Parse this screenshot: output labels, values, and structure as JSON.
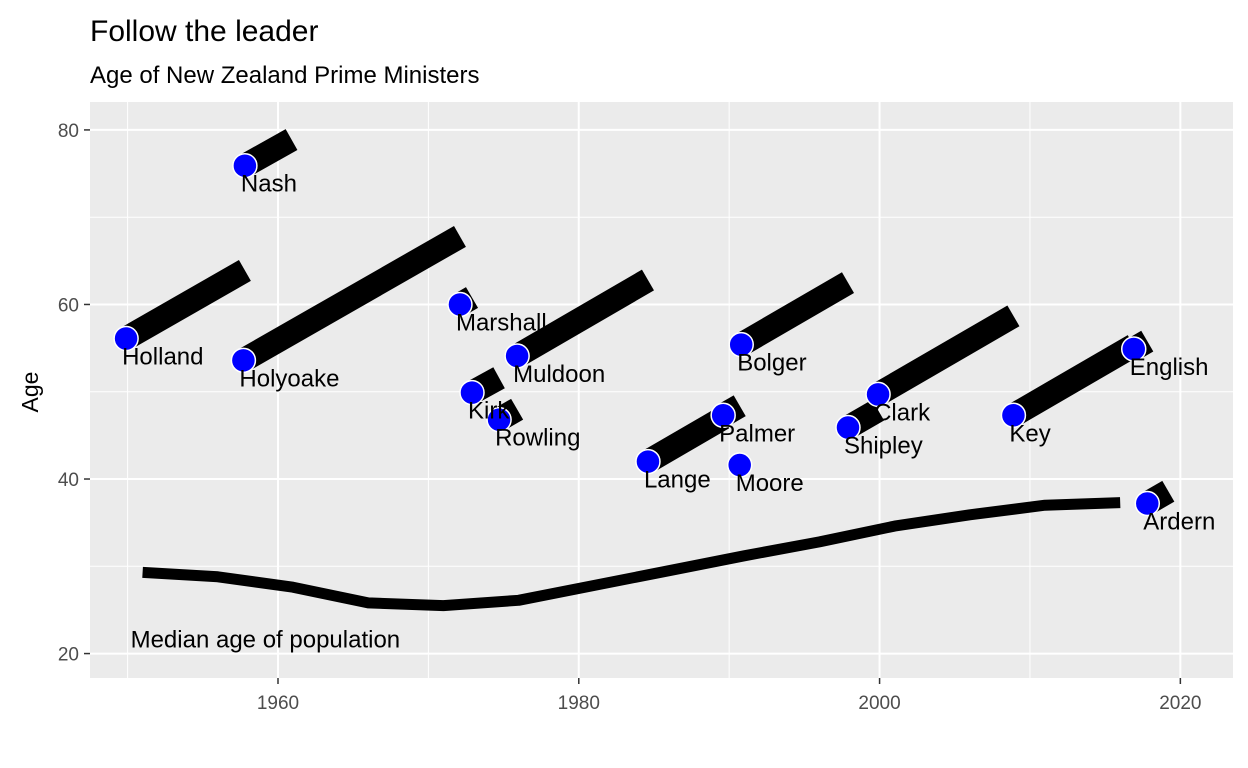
{
  "chart_data": {
    "type": "scatter",
    "title": "Follow the leader",
    "subtitle": "Age of New Zealand Prime Ministers",
    "xlabel": "",
    "ylabel": "Age",
    "xlim": [
      1947.5,
      2023.5
    ],
    "ylim": [
      17.2,
      83.2
    ],
    "x_ticks": [
      1960,
      1980,
      2000,
      2020
    ],
    "y_ticks": [
      20,
      40,
      60,
      80
    ],
    "grid": true,
    "point_color": "#0000ff",
    "segment_color": "#000000",
    "panel_background": "#ebebeb",
    "prime_ministers": [
      {
        "name": "Holland",
        "start_year": 1949.9,
        "end_year": 1957.8,
        "start_age": 56.1,
        "end_age": 63.9
      },
      {
        "name": "Nash",
        "start_year": 1957.8,
        "end_year": 1960.9,
        "start_age": 75.9,
        "end_age": 78.9
      },
      {
        "name": "Holyoake",
        "start_year": 1957.7,
        "end_year": 1972.1,
        "start_age": 53.6,
        "end_age": 67.8
      },
      {
        "name": "Marshall",
        "start_year": 1972.1,
        "end_year": 1972.9,
        "start_age": 60.0,
        "end_age": 60.8
      },
      {
        "name": "Kirk",
        "start_year": 1972.9,
        "end_year": 1974.7,
        "start_age": 49.9,
        "end_age": 51.6
      },
      {
        "name": "Rowling",
        "start_year": 1974.7,
        "end_year": 1975.9,
        "start_age": 46.8,
        "end_age": 48.0
      },
      {
        "name": "Muldoon",
        "start_year": 1975.9,
        "end_year": 1984.6,
        "start_age": 54.1,
        "end_age": 62.8
      },
      {
        "name": "Lange",
        "start_year": 1984.6,
        "end_year": 1989.6,
        "start_age": 42.0,
        "end_age": 47.0
      },
      {
        "name": "Palmer",
        "start_year": 1989.6,
        "end_year": 1990.7,
        "start_age": 47.3,
        "end_age": 48.4
      },
      {
        "name": "Moore",
        "start_year": 1990.7,
        "end_year": 1990.8,
        "start_age": 41.6,
        "end_age": 41.7
      },
      {
        "name": "Bolger",
        "start_year": 1990.8,
        "end_year": 1997.9,
        "start_age": 55.4,
        "end_age": 62.5
      },
      {
        "name": "Shipley",
        "start_year": 1997.9,
        "end_year": 1999.9,
        "start_age": 45.9,
        "end_age": 47.9
      },
      {
        "name": "Clark",
        "start_year": 1999.9,
        "end_year": 2008.9,
        "start_age": 49.7,
        "end_age": 58.7
      },
      {
        "name": "Key",
        "start_year": 2008.9,
        "end_year": 2016.9,
        "start_age": 47.3,
        "end_age": 55.3
      },
      {
        "name": "English",
        "start_year": 2016.9,
        "end_year": 2017.8,
        "start_age": 54.9,
        "end_age": 55.8
      },
      {
        "name": "Ardern",
        "start_year": 2017.8,
        "end_year": 2019.2,
        "start_age": 37.2,
        "end_age": 38.6
      }
    ],
    "median_age_series": {
      "label": "Median age of population",
      "x": [
        1951,
        1956,
        1961,
        1966,
        1971,
        1976,
        1981,
        1986,
        1991,
        1996,
        2001,
        2006,
        2011,
        2016
      ],
      "y": [
        29.3,
        28.8,
        27.6,
        25.8,
        25.5,
        26.1,
        27.8,
        29.5,
        31.2,
        32.8,
        34.6,
        35.9,
        37.0,
        37.3
      ]
    }
  }
}
